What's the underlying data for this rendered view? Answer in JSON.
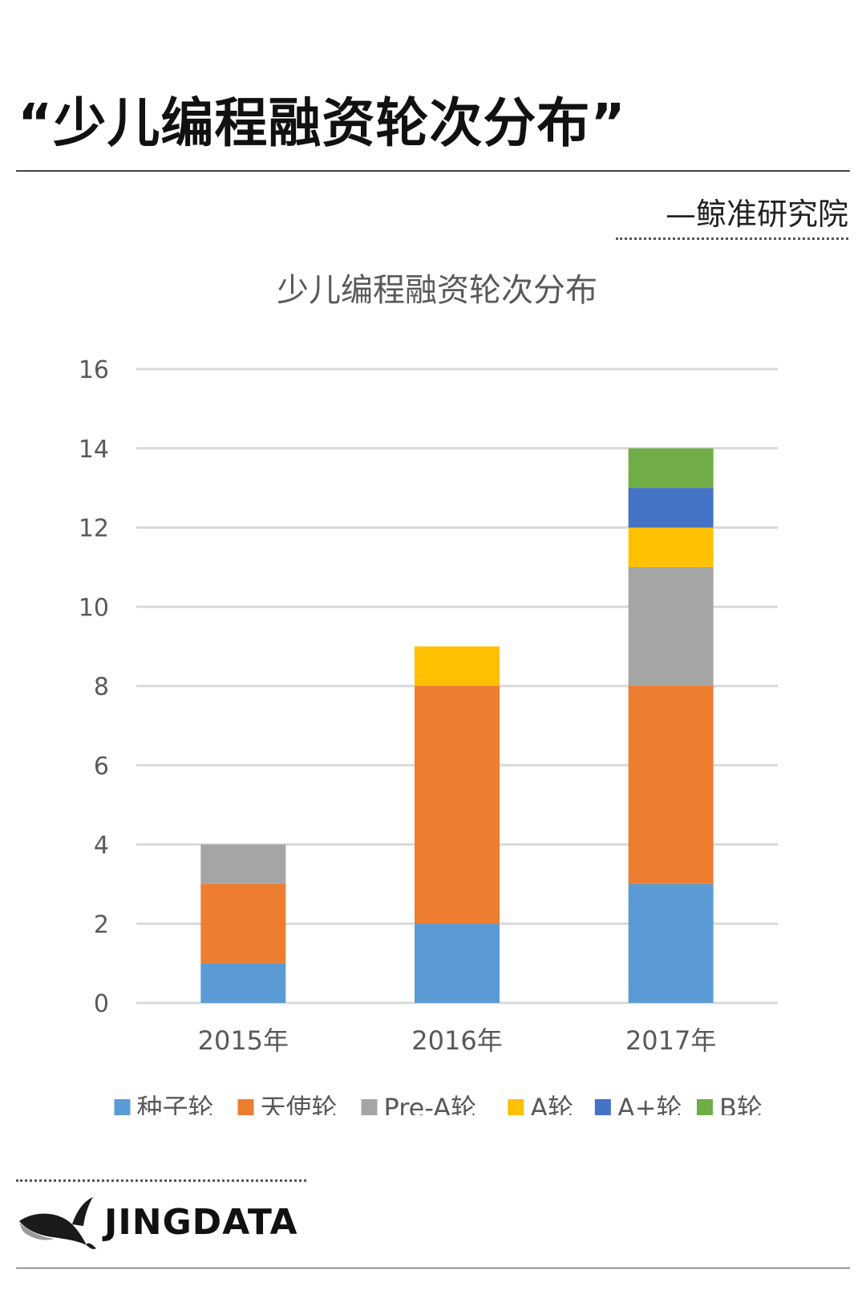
{
  "header": {
    "headline": "“少儿编程融资轮次分布”",
    "source": "—鲸准研究院"
  },
  "brand": {
    "name": "JINGDATA",
    "icon": "whale-logo-icon"
  },
  "colors": {
    "series": [
      "#5B9BD5",
      "#ED7D31",
      "#A5A5A5",
      "#FFC000",
      "#4472C4",
      "#70AD47"
    ],
    "grid": "#D9D9D9",
    "axis_text": "#595959"
  },
  "chart_data": {
    "type": "bar",
    "stacked": true,
    "title": "少儿编程融资轮次分布",
    "categories": [
      "2015年",
      "2016年",
      "2017年"
    ],
    "series": [
      {
        "name": "种子轮",
        "values": [
          1,
          2,
          3
        ]
      },
      {
        "name": "天使轮",
        "values": [
          2,
          6,
          5
        ]
      },
      {
        "name": "Pre-A轮",
        "values": [
          1,
          0,
          3
        ]
      },
      {
        "name": "A轮",
        "values": [
          0,
          1,
          1
        ]
      },
      {
        "name": "A+轮",
        "values": [
          0,
          0,
          1
        ]
      },
      {
        "name": "B轮",
        "values": [
          0,
          0,
          1
        ]
      }
    ],
    "ylim": [
      0,
      16
    ],
    "yticks": [
      0,
      2,
      4,
      6,
      8,
      10,
      12,
      14,
      16
    ],
    "grid": true,
    "legend": "bottom"
  }
}
